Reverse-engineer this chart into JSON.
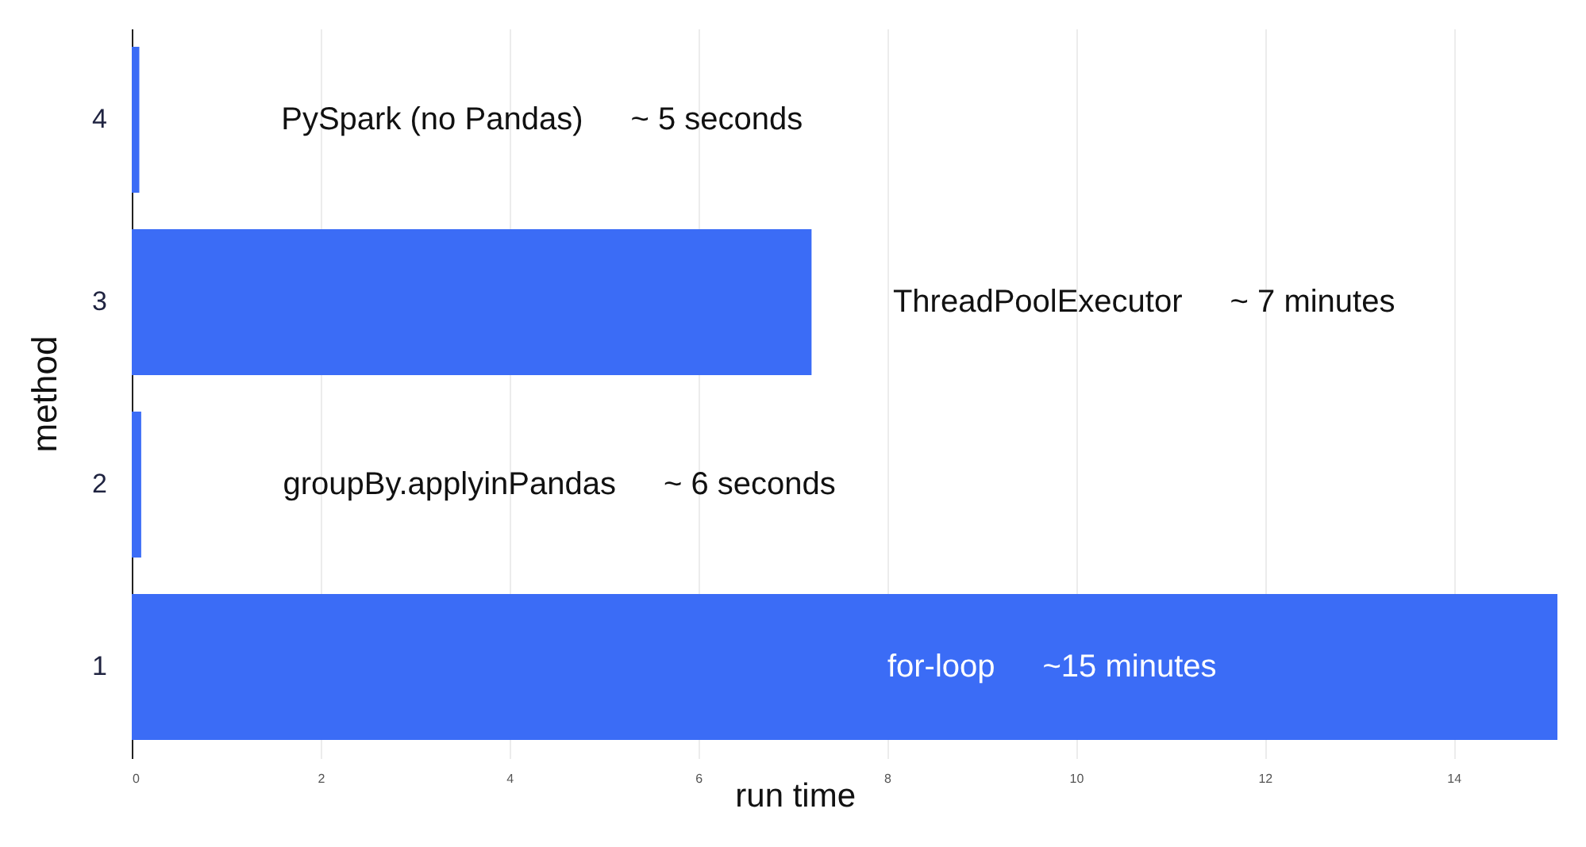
{
  "chart_data": {
    "type": "bar",
    "orientation": "horizontal",
    "categories": [
      "4",
      "3",
      "2",
      "1"
    ],
    "values": [
      0.08,
      7.2,
      0.1,
      15.1
    ],
    "color": "#3b6cf6",
    "xlabel": "run time",
    "ylabel": "method",
    "xlim": [
      0,
      15.1
    ],
    "xticks": [
      0,
      2,
      4,
      6,
      8,
      10,
      12,
      14
    ],
    "grid": "x",
    "annotations": [
      "PySpark (no Pandas)",
      "~ 5 seconds",
      "ThreadPoolExecutor",
      "~ 7 minutes",
      "groupBy.applyinPandas",
      "~ 6 seconds",
      "for-loop",
      "~15 minutes"
    ]
  }
}
